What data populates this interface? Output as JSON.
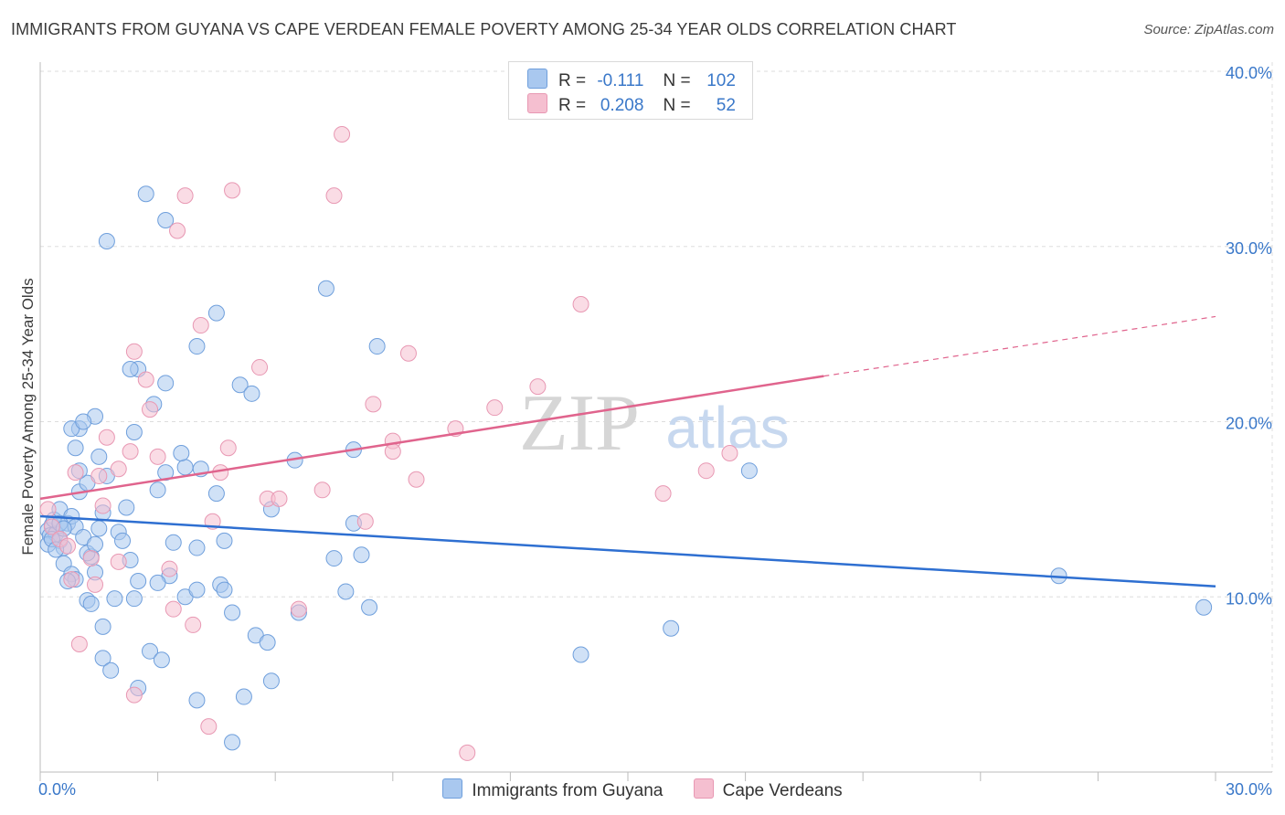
{
  "header": {
    "title": "IMMIGRANTS FROM GUYANA VS CAPE VERDEAN FEMALE POVERTY AMONG 25-34 YEAR OLDS CORRELATION CHART",
    "source": "Source: ZipAtlas.com"
  },
  "watermark": {
    "zip": "ZIP",
    "atlas": "atlas"
  },
  "legend": {
    "rows": [
      {
        "r_label": "R =",
        "r_value": "-0.111",
        "n_label": "N =",
        "n_value": "102"
      },
      {
        "r_label": "R =",
        "r_value": "0.208",
        "n_label": "N =",
        "n_value": "52"
      }
    ]
  },
  "bottom_legend": {
    "series1": "Immigrants from Guyana",
    "series2": "Cape Verdeans"
  },
  "colors": {
    "blue_fill": "#a9c8ef",
    "blue_stroke": "#6f9fdc",
    "blue_line": "#2e6fd1",
    "pink_fill": "#f5bfd0",
    "pink_stroke": "#e898b3",
    "pink_line": "#e0648d",
    "tick_text": "#3a78c9",
    "grid": "#dddddd"
  },
  "chart_data": {
    "type": "scatter",
    "title": "IMMIGRANTS FROM GUYANA VS CAPE VERDEAN FEMALE POVERTY AMONG 25-34 YEAR OLDS CORRELATION CHART",
    "xlabel": "",
    "ylabel": "Female Poverty Among 25-34 Year Olds",
    "xlim": [
      0,
      30
    ],
    "ylim": [
      0,
      40
    ],
    "x_tick_labels": [
      "0.0%",
      "30.0%"
    ],
    "y_tick_labels": [
      "10.0%",
      "20.0%",
      "30.0%",
      "40.0%"
    ],
    "grid": true,
    "legend_placement": "top-center",
    "series": [
      {
        "name": "Immigrants from Guyana",
        "r": -0.111,
        "n": 102,
        "trend": {
          "x": [
            0,
            30
          ],
          "y": [
            14.6,
            10.6
          ]
        },
        "points": [
          [
            0.2,
            13.8
          ],
          [
            0.3,
            14.1
          ],
          [
            0.25,
            13.5
          ],
          [
            0.4,
            13.6
          ],
          [
            0.35,
            14.4
          ],
          [
            0.5,
            13.2
          ],
          [
            0.2,
            13.0
          ],
          [
            0.6,
            12.8
          ],
          [
            0.7,
            14.2
          ],
          [
            0.5,
            15.0
          ],
          [
            0.8,
            14.6
          ],
          [
            0.9,
            14.0
          ],
          [
            1.0,
            16.0
          ],
          [
            1.2,
            16.5
          ],
          [
            1.1,
            13.4
          ],
          [
            1.3,
            12.3
          ],
          [
            1.4,
            11.4
          ],
          [
            1.5,
            13.9
          ],
          [
            1.6,
            14.8
          ],
          [
            1.7,
            16.9
          ],
          [
            0.9,
            18.5
          ],
          [
            1.0,
            17.2
          ],
          [
            1.5,
            18.0
          ],
          [
            1.4,
            20.3
          ],
          [
            1.0,
            19.6
          ],
          [
            0.8,
            19.6
          ],
          [
            2.4,
            19.4
          ],
          [
            2.0,
            13.7
          ],
          [
            2.1,
            13.2
          ],
          [
            2.3,
            12.1
          ],
          [
            0.6,
            11.9
          ],
          [
            0.8,
            11.3
          ],
          [
            0.9,
            11.0
          ],
          [
            0.7,
            10.9
          ],
          [
            1.2,
            9.8
          ],
          [
            1.3,
            9.6
          ],
          [
            1.6,
            8.3
          ],
          [
            1.9,
            9.9
          ],
          [
            2.4,
            9.9
          ],
          [
            2.5,
            10.9
          ],
          [
            1.6,
            6.5
          ],
          [
            1.8,
            5.8
          ],
          [
            2.5,
            4.8
          ],
          [
            2.8,
            6.9
          ],
          [
            3.1,
            6.4
          ],
          [
            3.3,
            11.2
          ],
          [
            3.0,
            10.8
          ],
          [
            3.7,
            10.0
          ],
          [
            4.0,
            10.4
          ],
          [
            4.6,
            10.7
          ],
          [
            4.7,
            10.4
          ],
          [
            4.9,
            9.1
          ],
          [
            5.5,
            7.8
          ],
          [
            5.8,
            7.4
          ],
          [
            5.9,
            5.2
          ],
          [
            5.2,
            4.3
          ],
          [
            4.0,
            4.1
          ],
          [
            4.9,
            1.7
          ],
          [
            3.4,
            13.1
          ],
          [
            4.0,
            12.8
          ],
          [
            4.7,
            13.2
          ],
          [
            3.7,
            17.4
          ],
          [
            3.2,
            17.1
          ],
          [
            3.0,
            16.1
          ],
          [
            3.6,
            18.2
          ],
          [
            4.1,
            17.3
          ],
          [
            4.5,
            15.9
          ],
          [
            2.5,
            23.0
          ],
          [
            2.3,
            23.0
          ],
          [
            2.9,
            21.0
          ],
          [
            3.2,
            22.2
          ],
          [
            4.0,
            24.3
          ],
          [
            4.5,
            26.2
          ],
          [
            5.1,
            22.1
          ],
          [
            5.4,
            21.6
          ],
          [
            5.9,
            15.0
          ],
          [
            6.5,
            17.8
          ],
          [
            7.3,
            27.6
          ],
          [
            7.5,
            12.2
          ],
          [
            7.8,
            10.3
          ],
          [
            8.0,
            14.2
          ],
          [
            8.0,
            18.4
          ],
          [
            8.2,
            12.4
          ],
          [
            8.4,
            9.4
          ],
          [
            8.6,
            24.3
          ],
          [
            6.6,
            9.1
          ],
          [
            2.7,
            33.0
          ],
          [
            3.2,
            31.5
          ],
          [
            1.7,
            30.3
          ],
          [
            13.8,
            6.7
          ],
          [
            16.1,
            8.2
          ],
          [
            18.1,
            17.2
          ],
          [
            26.0,
            11.2
          ],
          [
            29.7,
            9.4
          ],
          [
            1.1,
            20.0
          ],
          [
            0.5,
            14.2
          ],
          [
            0.3,
            13.3
          ],
          [
            0.6,
            13.9
          ],
          [
            2.2,
            15.1
          ],
          [
            1.2,
            12.5
          ],
          [
            1.4,
            13.0
          ],
          [
            0.4,
            12.7
          ]
        ]
      },
      {
        "name": "Cape Verdeans",
        "r": 0.208,
        "n": 52,
        "trend": {
          "x": [
            0,
            20
          ],
          "y": [
            15.6,
            22.6
          ]
        },
        "trend_dashed": {
          "x": [
            20,
            30
          ],
          "y": [
            22.6,
            26.0
          ]
        },
        "points": [
          [
            0.2,
            15.0
          ],
          [
            0.3,
            14.0
          ],
          [
            0.5,
            13.3
          ],
          [
            0.7,
            12.9
          ],
          [
            0.8,
            11.0
          ],
          [
            0.9,
            17.1
          ],
          [
            1.3,
            12.2
          ],
          [
            1.4,
            10.7
          ],
          [
            1.6,
            15.2
          ],
          [
            1.7,
            19.1
          ],
          [
            1.5,
            16.9
          ],
          [
            2.0,
            12.0
          ],
          [
            2.0,
            17.3
          ],
          [
            2.3,
            18.3
          ],
          [
            2.4,
            24.0
          ],
          [
            2.7,
            22.4
          ],
          [
            2.8,
            20.7
          ],
          [
            3.0,
            18.0
          ],
          [
            3.3,
            11.6
          ],
          [
            3.4,
            9.3
          ],
          [
            3.5,
            30.9
          ],
          [
            3.7,
            32.9
          ],
          [
            3.9,
            8.4
          ],
          [
            4.1,
            25.5
          ],
          [
            4.4,
            14.3
          ],
          [
            4.6,
            17.1
          ],
          [
            4.8,
            18.5
          ],
          [
            4.9,
            33.2
          ],
          [
            5.6,
            23.1
          ],
          [
            5.8,
            15.6
          ],
          [
            6.1,
            15.6
          ],
          [
            6.6,
            9.3
          ],
          [
            7.2,
            16.1
          ],
          [
            7.5,
            32.9
          ],
          [
            7.7,
            36.4
          ],
          [
            8.3,
            14.3
          ],
          [
            8.5,
            21.0
          ],
          [
            9.0,
            18.9
          ],
          [
            9.0,
            18.3
          ],
          [
            9.4,
            23.9
          ],
          [
            9.6,
            16.7
          ],
          [
            10.6,
            19.6
          ],
          [
            11.6,
            20.8
          ],
          [
            12.7,
            22.0
          ],
          [
            13.8,
            26.7
          ],
          [
            15.9,
            15.9
          ],
          [
            17.0,
            17.2
          ],
          [
            17.6,
            18.2
          ],
          [
            1.0,
            7.3
          ],
          [
            2.4,
            4.4
          ],
          [
            4.3,
            2.6
          ],
          [
            10.9,
            1.1
          ]
        ]
      }
    ]
  }
}
